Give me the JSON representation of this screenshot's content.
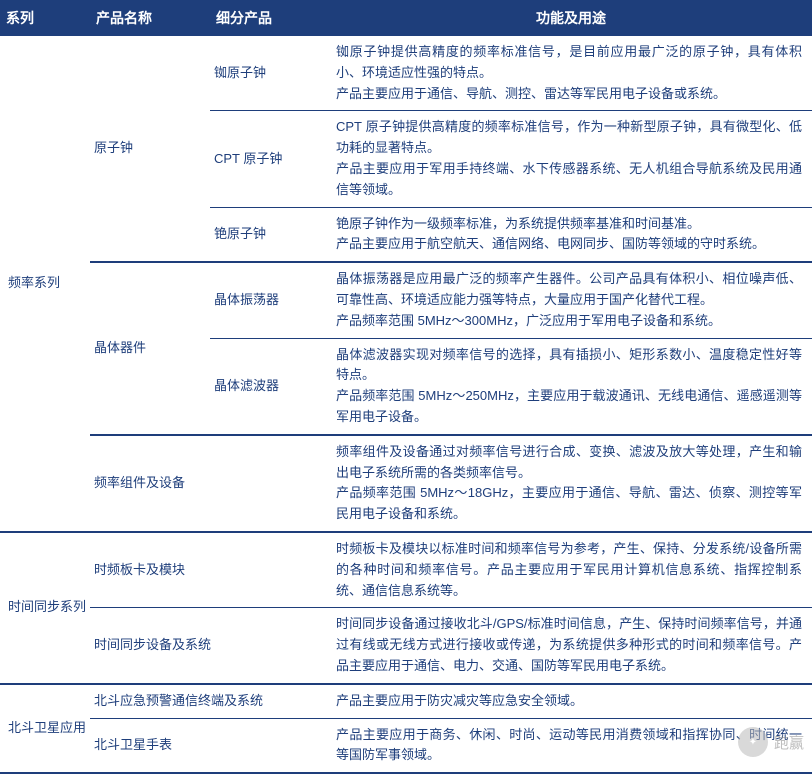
{
  "colors": {
    "header_bg": "#1e3e7b",
    "header_text": "#ffffff",
    "text": "#1e3e7b",
    "border": "#1e3e7b",
    "background": "#ffffff"
  },
  "headers": {
    "c0": "系列",
    "c1": "产品名称",
    "c2": "细分产品",
    "c3": "功能及用途"
  },
  "rows": {
    "r0": {
      "series": "频率系列",
      "product": "原子钟",
      "sub": "铷原子钟",
      "desc": "铷原子钟提供高精度的频率标准信号，是目前应用最广泛的原子钟，具有体积小、环境适应性强的特点。\n产品主要应用于通信、导航、测控、雷达等军民用电子设备或系统。"
    },
    "r1": {
      "sub": "CPT 原子钟",
      "desc": "CPT 原子钟提供高精度的频率标准信号，作为一种新型原子钟，具有微型化、低功耗的显著特点。\n产品主要应用于军用手持终端、水下传感器系统、无人机组合导航系统及民用通信等领域。"
    },
    "r2": {
      "sub": "铯原子钟",
      "desc": "铯原子钟作为一级频率标准，为系统提供频率基准和时间基准。\n产品主要应用于航空航天、通信网络、电网同步、国防等领域的守时系统。"
    },
    "r3": {
      "product": "晶体器件",
      "sub": "晶体振荡器",
      "desc": "晶体振荡器是应用最广泛的频率产生器件。公司产品具有体积小、相位噪声低、可靠性高、环境适应能力强等特点，大量应用于国产化替代工程。\n产品频率范围 5MHz～300MHz，广泛应用于军用电子设备和系统。"
    },
    "r4": {
      "sub": "晶体滤波器",
      "desc": "晶体滤波器实现对频率信号的选择，具有插损小、矩形系数小、温度稳定性好等特点。\n产品频率范围 5MHz～250MHz，主要应用于载波通讯、无线电通信、遥感遥测等军用电子设备。"
    },
    "r5": {
      "product": "频率组件及设备",
      "desc": "频率组件及设备通过对频率信号进行合成、变换、滤波及放大等处理，产生和输出电子系统所需的各类频率信号。\n产品频率范围 5MHz～18GHz，主要应用于通信、导航、雷达、侦察、测控等军民用电子设备和系统。"
    },
    "r6": {
      "series": "时间同步系列",
      "product": "时频板卡及模块",
      "desc": "时频板卡及模块以标准时间和频率信号为参考，产生、保持、分发系统/设备所需的各种时间和频率信号。产品主要应用于军民用计算机信息系统、指挥控制系统、通信信息系统等。"
    },
    "r7": {
      "product": "时间同步设备及系统",
      "desc": "时间同步设备通过接收北斗/GPS/标准时间信息，产生、保持时间频率信号，并通过有线或无线方式进行接收或传递，为系统提供多种形式的时间和频率信号。产品主要应用于通信、电力、交通、国防等军民用电子系统。"
    },
    "r8": {
      "series": "北斗卫星应用",
      "product": "北斗应急预警通信终端及系统",
      "desc": "产品主要应用于防灾减灾等应急安全领域。"
    },
    "r9": {
      "product": "北斗卫星手表",
      "desc": "产品主要应用于商务、休闲、时尚、运动等民用消费领域和指挥协同、时间统一等国防军事领域。"
    }
  },
  "watermark": {
    "text": "跑赢"
  }
}
